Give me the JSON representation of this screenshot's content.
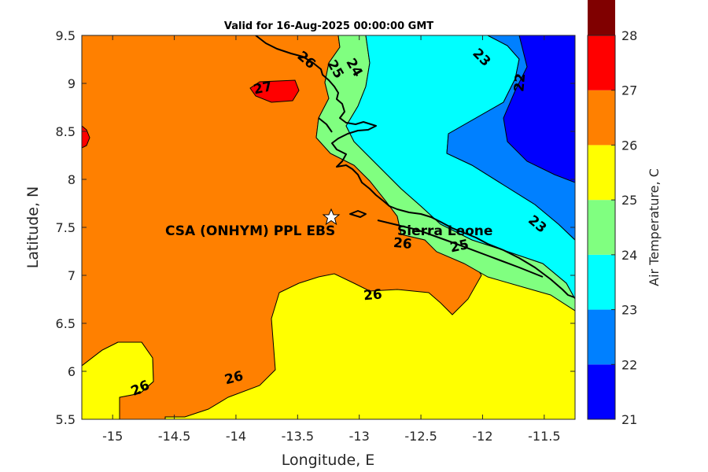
{
  "title": "Valid for 16-Aug-2025 00:00:00 GMT",
  "map": {
    "xlabel": "Longitude, E",
    "ylabel": "Latitude, N",
    "xlim": [
      -15.25,
      -11.25
    ],
    "ylim": [
      5.5,
      9.5
    ],
    "xticks": [
      "-15",
      "-14.5",
      "-14",
      "-13.5",
      "-13",
      "-12.5",
      "-12",
      "-11.5"
    ],
    "yticks": [
      "5.5",
      "6",
      "6.5",
      "7",
      "7.5",
      "8",
      "8.5",
      "9",
      "9.5"
    ],
    "marker": {
      "name": "CSA (ONHYM) PPL EBS",
      "lon": -13.23,
      "lat": 7.6,
      "symbol": "star"
    },
    "place_label": "Sierra Leone",
    "contour_labels": [
      "27",
      "26",
      "25",
      "24",
      "23",
      "22",
      "26",
      "25",
      "23",
      "26",
      "26",
      "26"
    ]
  },
  "colorbar": {
    "label": "Air Temperature, C",
    "ticks": [
      "21",
      "22",
      "23",
      "24",
      "25",
      "26",
      "27",
      "28"
    ],
    "colors": [
      "#0000ff",
      "#0080ff",
      "#00ffff",
      "#80ff80",
      "#ffff00",
      "#ff8000",
      "#ff0000",
      "#800000"
    ]
  }
}
